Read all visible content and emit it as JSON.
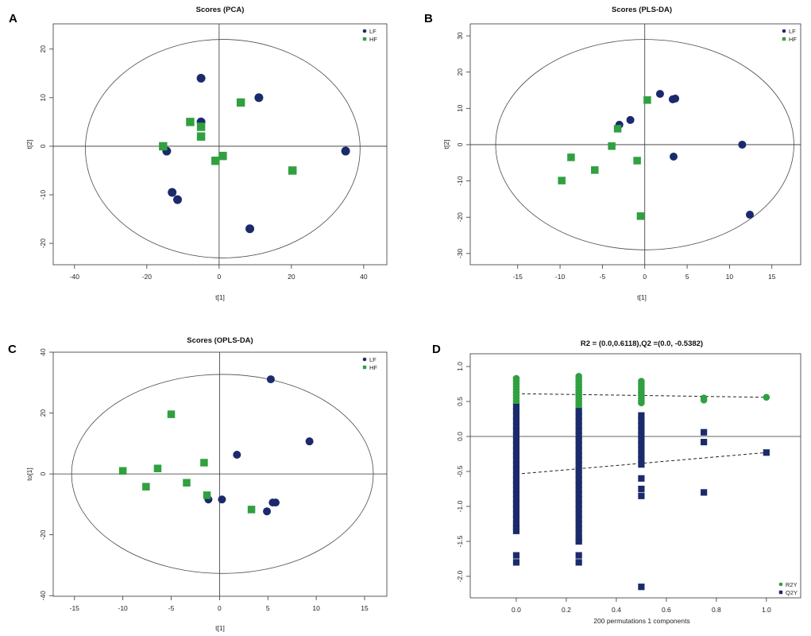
{
  "chart_data": [
    {
      "panel": "A",
      "type": "scatter",
      "title": "Scores (PCA)",
      "xlabel": "t[1]",
      "ylabel": "t[2]",
      "xlim": [
        -45.9,
        46.4
      ],
      "ylim": [
        -24.4,
        25.2
      ],
      "xticks": [
        "-40",
        "-20",
        "0",
        "20",
        "40"
      ],
      "yticks": [
        "-20",
        "-10",
        "0",
        "10",
        "20"
      ],
      "ref_lines": {
        "x": 0,
        "y": 0
      },
      "ellipse": {
        "cx": 1,
        "cy": -0.5,
        "rx": 38,
        "ry": 22.5
      },
      "legend": "top-right",
      "series": [
        {
          "name": "LF",
          "color": "#1b2a6b",
          "points": [
            [
              -5,
              14
            ],
            [
              11,
              10
            ],
            [
              -5,
              5
            ],
            [
              35,
              -1
            ],
            [
              -14.5,
              -1
            ],
            [
              -13,
              -9.5
            ],
            [
              -11.5,
              -11
            ],
            [
              8.5,
              -17
            ]
          ]
        },
        {
          "name": "HF",
          "color": "#30a040",
          "points": [
            [
              -8,
              5
            ],
            [
              -5,
              4
            ],
            [
              -5,
              2
            ],
            [
              -15.5,
              0
            ],
            [
              6,
              9
            ],
            [
              -1,
              -3
            ],
            [
              1,
              -2
            ],
            [
              20.3,
              -5
            ]
          ]
        }
      ]
    },
    {
      "panel": "B",
      "type": "scatter",
      "title": "Scores (PLS-DA)",
      "xlabel": "t[1]",
      "ylabel": "t[2]",
      "xlim": [
        -20.6,
        18.4
      ],
      "ylim": [
        -33.1,
        33.3
      ],
      "xticks": [
        "-15",
        "-10",
        "-5",
        "0",
        "5",
        "10",
        "15"
      ],
      "yticks": [
        "-30",
        "-20",
        "-10",
        "0",
        "10",
        "20",
        "30"
      ],
      "ref_lines": {
        "x": 0,
        "y": 0
      },
      "ellipse": {
        "cx": 0,
        "cy": 0,
        "rx": 17.6,
        "ry": 29
      },
      "legend": "top-right",
      "series": [
        {
          "name": "LF",
          "color": "#1b2a6b",
          "points": [
            [
              1.8,
              14
            ],
            [
              3.3,
              12.5
            ],
            [
              3.6,
              12.7
            ],
            [
              -1.7,
              6.8
            ],
            [
              -3,
              5.5
            ],
            [
              3.4,
              -3.3
            ],
            [
              11.5,
              0
            ],
            [
              12.4,
              -19.3
            ]
          ]
        },
        {
          "name": "HF",
          "color": "#30a040",
          "points": [
            [
              0.3,
              12.3
            ],
            [
              -3.2,
              4.4
            ],
            [
              -3.9,
              -0.4
            ],
            [
              -8.7,
              -3.5
            ],
            [
              -9.8,
              -9.9
            ],
            [
              -5.9,
              -7
            ],
            [
              -0.9,
              -4.4
            ],
            [
              -0.5,
              -19.7
            ]
          ]
        }
      ]
    },
    {
      "panel": "C",
      "type": "scatter",
      "title": "Scores (OPLS-DA)",
      "xlabel": "t[1]",
      "ylabel": "to[1]",
      "xlim": [
        -17.2,
        17.3
      ],
      "ylim": [
        -40.2,
        40
      ],
      "xticks": [
        "-15",
        "-10",
        "-5",
        "0",
        "5",
        "10",
        "15"
      ],
      "yticks": [
        "-40",
        "-20",
        "0",
        "20",
        "40"
      ],
      "ref_lines": {
        "x": 0,
        "y": 0
      },
      "ellipse": {
        "cx": 0.3,
        "cy": 0,
        "rx": 15.6,
        "ry": 32.7
      },
      "legend": "top-right",
      "series": [
        {
          "name": "LF",
          "color": "#1b2a6b",
          "points": [
            [
              5.3,
              31.1
            ],
            [
              9.3,
              10.7
            ],
            [
              1.8,
              6.3
            ],
            [
              -1.15,
              -8.4
            ],
            [
              0.25,
              -8.4
            ],
            [
              5.5,
              -9.4
            ],
            [
              5.8,
              -9.4
            ],
            [
              4.9,
              -12.3
            ]
          ]
        },
        {
          "name": "HF",
          "color": "#30a040",
          "points": [
            [
              -5,
              19.6
            ],
            [
              -10,
              1
            ],
            [
              -6.4,
              1.8
            ],
            [
              -1.6,
              3.7
            ],
            [
              -7.6,
              -4.2
            ],
            [
              -3.4,
              -2.9
            ],
            [
              -1.3,
              -7
            ],
            [
              3.3,
              -11.7
            ]
          ]
        }
      ]
    },
    {
      "panel": "D",
      "type": "scatter",
      "title": "R2 = (0.0,0.6118),Q2 =(0.0, -0.5382)",
      "xlabel": "200 permutations 1 components",
      "xlim": [
        -0.184,
        1.137
      ],
      "ylim": [
        -2.307,
        1.182
      ],
      "xticks": [
        "0.0",
        "0.2",
        "0.4",
        "0.6",
        "0.8",
        "1.0"
      ],
      "yticks": [
        "-2.0",
        "-1.5",
        "-1.0",
        "-0.5",
        "0.0",
        "0.5",
        "1.0"
      ],
      "ref_lines": {
        "y": 0
      },
      "legend": "bottom-right",
      "series": [
        {
          "name": "R2Y",
          "color": "#30a040",
          "fit": [
            [
              0,
              0.6118
            ],
            [
              1,
              0.56
            ]
          ],
          "points_by_x": [
            {
              "x": 0,
              "y": [
                0.83,
                0.79,
                0.75,
                0.71,
                0.67,
                0.63,
                0.59,
                0.55,
                0.51,
                0.47
              ]
            },
            {
              "x": 0.25,
              "y": [
                0.86,
                0.82,
                0.78,
                0.74,
                0.7,
                0.66,
                0.62,
                0.58,
                0.54,
                0.5,
                0.46,
                0.42
              ]
            },
            {
              "x": 0.5,
              "y": [
                0.79,
                0.75,
                0.71,
                0.67,
                0.63,
                0.59,
                0.55,
                0.51,
                0.48
              ]
            },
            {
              "x": 0.75,
              "y": [
                0.55,
                0.52
              ]
            },
            {
              "x": 1,
              "y": [
                0.56
              ]
            }
          ]
        },
        {
          "name": "Q2Y",
          "color": "#1b2a6b",
          "fit": [
            [
              0,
              -0.5382
            ],
            [
              1,
              -0.23
            ]
          ],
          "points_by_x": [
            {
              "x": 0,
              "y": [
                0.42,
                0.36,
                0.29,
                0.22,
                0.15,
                0.08,
                0.01,
                -0.06,
                -0.13,
                -0.2,
                -0.27,
                -0.34,
                -0.41,
                -0.48,
                -0.55,
                -0.62,
                -0.69,
                -0.76,
                -0.83,
                -0.9,
                -0.97,
                -1.04,
                -1.11,
                -1.18,
                -1.25,
                -1.3,
                -1.35,
                -1.7,
                -1.8
              ]
            },
            {
              "x": 0.25,
              "y": [
                0.36,
                0.29,
                0.22,
                0.15,
                0.08,
                0.01,
                -0.06,
                -0.13,
                -0.2,
                -0.27,
                -0.34,
                -0.41,
                -0.48,
                -0.55,
                -0.62,
                -0.69,
                -0.76,
                -0.83,
                -0.9,
                -0.97,
                -1.04,
                -1.11,
                -1.18,
                -1.25,
                -1.32,
                -1.39,
                -1.46,
                -1.5,
                -1.7,
                -1.8
              ]
            },
            {
              "x": 0.5,
              "y": [
                0.3,
                0.23,
                0.16,
                0.09,
                0.02,
                -0.05,
                -0.12,
                -0.19,
                -0.26,
                -0.33,
                -0.4,
                -0.6,
                -0.75,
                -0.85,
                -2.15
              ]
            },
            {
              "x": 0.75,
              "y": [
                0.06,
                -0.08,
                -0.8
              ]
            },
            {
              "x": 1,
              "y": [
                -0.23
              ]
            }
          ]
        }
      ]
    }
  ]
}
